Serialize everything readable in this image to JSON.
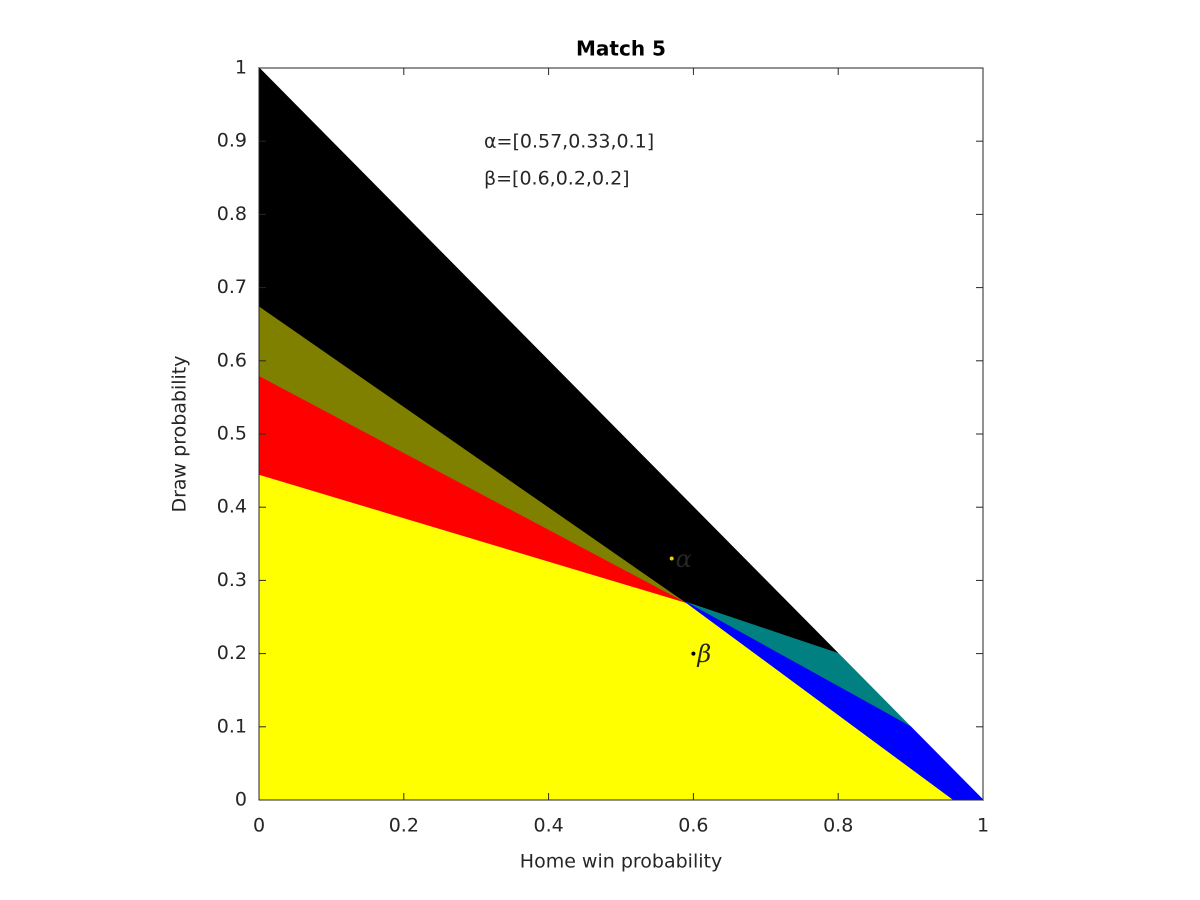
{
  "chart_data": {
    "type": "polygon",
    "title": "Match 5",
    "x_label": "Home win probability",
    "y_label": "Draw probability",
    "xlim": [
      0,
      1
    ],
    "ylim": [
      0,
      1
    ],
    "xticks": [
      0,
      0.2,
      0.4,
      0.6,
      0.8,
      1
    ],
    "yticks": [
      0,
      0.1,
      0.2,
      0.3,
      0.4,
      0.5,
      0.6,
      0.7,
      0.8,
      0.9,
      1
    ],
    "grid": false,
    "series": [
      {
        "color": "#ffff00",
        "x": [
          0,
          0,
          0.96,
          0.59
        ],
        "y": [
          0.445,
          0,
          0,
          0.27
        ]
      },
      {
        "color": "#ff0000",
        "x": [
          0,
          0,
          0.59
        ],
        "y": [
          0.58,
          0.445,
          0.27
        ]
      },
      {
        "color": "#808000",
        "x": [
          0,
          0,
          0.59
        ],
        "y": [
          0.675,
          0.58,
          0.27
        ]
      },
      {
        "color": "#000000",
        "x": [
          0,
          0,
          0.59,
          0.8
        ],
        "y": [
          1,
          0.675,
          0.27,
          0.2
        ]
      },
      {
        "color": "#008080",
        "x": [
          0.59,
          0.8,
          0.9
        ],
        "y": [
          0.27,
          0.2,
          0.1
        ]
      },
      {
        "color": "#0000ff",
        "x": [
          0.59,
          0.9,
          1,
          0.96
        ],
        "y": [
          0.27,
          0.1,
          0,
          0
        ]
      }
    ],
    "points": [
      {
        "label": "α",
        "x": 0.57,
        "y": 0.33,
        "color": "#e6d600"
      },
      {
        "label": "β",
        "x": 0.6,
        "y": 0.2,
        "color": "#000000"
      }
    ],
    "annotations": [
      "α=[0.57,0.33,0.1]",
      "β=[0.6,0.2,0.2]"
    ]
  }
}
